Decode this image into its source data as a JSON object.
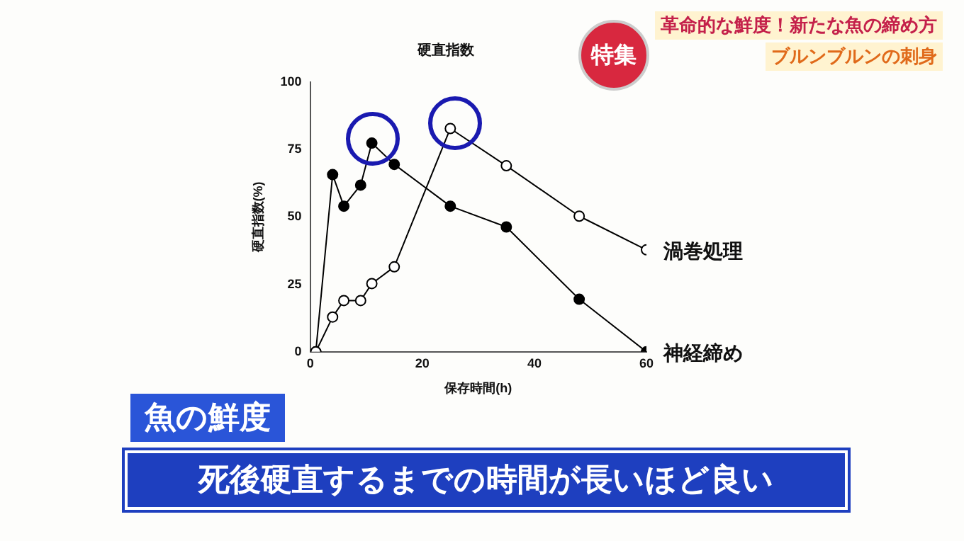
{
  "chart_data": {
    "type": "line",
    "title": "硬直指数",
    "xlabel": "保存時間(h)",
    "ylabel": "硬直指数(%)",
    "series": [
      {
        "name": "渦巻処理",
        "color": "#000000",
        "x": [
          1,
          4,
          6,
          9,
          11,
          15,
          25,
          35,
          48,
          60
        ],
        "values": [
          0,
          12.9,
          19,
          19,
          25.3,
          31.5,
          82.8,
          69,
          50.3,
          37.8
        ]
      },
      {
        "name": "神経締め",
        "color": "#000000",
        "x": [
          1,
          4,
          6,
          9,
          11,
          15,
          25,
          35,
          48,
          60
        ],
        "values": [
          0,
          65.7,
          54,
          61.8,
          77.4,
          69.5,
          54,
          46.3,
          19.5,
          0
        ]
      }
    ],
    "xlim": [
      0,
      60
    ],
    "xticks": [
      0,
      20,
      40,
      60
    ],
    "ylim": [
      0,
      100
    ],
    "yticks": [
      0,
      25,
      50,
      75,
      100
    ],
    "grid": false,
    "legend": false,
    "marker": "circle",
    "line_style": "solid",
    "annotations": [
      "特集",
      "革命的な鮮度！新たな魚の締め方",
      "ブルンブルンの刺身",
      "魚の鮮度",
      "死後硬直するまでの時間が長いほど良い"
    ]
  }
}
